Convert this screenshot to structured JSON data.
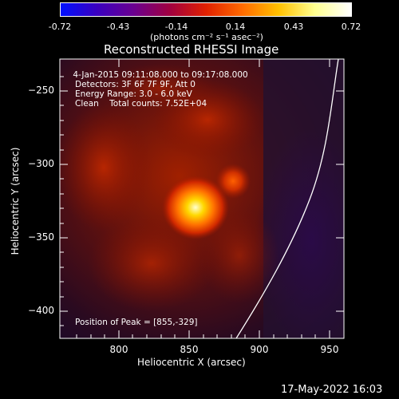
{
  "colorbar": {
    "ticks": [
      "-0.72",
      "-0.43",
      "-0.14",
      "0.14",
      "0.43",
      "0.72"
    ],
    "units": "(photons cm⁻² s⁻¹ asec⁻²)",
    "colors": [
      "#0010ff",
      "#3a00c0",
      "#6a0090",
      "#a00040",
      "#e02000",
      "#ff6a00",
      "#ffc000",
      "#ffff90",
      "#ffffff"
    ]
  },
  "plot": {
    "title": "Reconstructed RHESSI Image",
    "xlabel": "Heliocentric X (arcsec)",
    "ylabel": "Heliocentric Y (arcsec)",
    "x_ticks": [
      "800",
      "850",
      "900",
      "950"
    ],
    "y_ticks": [
      "−250",
      "−300",
      "−350",
      "−400"
    ],
    "xlim": [
      760,
      955
    ],
    "ylim": [
      -420,
      -230
    ],
    "colors": {
      "limb": "#ffffff",
      "frame": "#ffffff",
      "background": "#000000"
    }
  },
  "info": {
    "line1": " 4-Jan-2015 09:11:08.000 to 09:17:08.000",
    "line2": "Detectors: 3F 6F 7F 9F, Att 0",
    "line3": "Energy Range: 3.0 - 6.0 keV",
    "line4": "Clean    Total counts: 7.52E+04",
    "peak": "Position of Peak = [855,-329]"
  },
  "footer": {
    "date": "17-May-2022 16:03"
  }
}
